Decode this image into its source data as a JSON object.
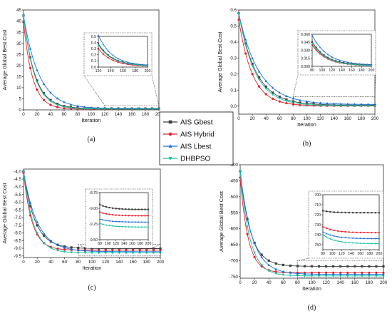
{
  "colors": {
    "AIS Gbest": "#404040",
    "AIS Hybrid": "#e8212b",
    "AIS Lbest": "#1c6fd8",
    "DHBPSO": "#16c2a3"
  },
  "legend": {
    "entries": [
      {
        "label": "AIS Gbest",
        "color": "#404040",
        "marker": "square"
      },
      {
        "label": "AIS Hybrid",
        "color": "#e8212b",
        "marker": "circle"
      },
      {
        "label": "AIS Lbest",
        "color": "#1c6fd8",
        "marker": "triangle"
      },
      {
        "label": "DHBPSO",
        "color": "#16c2a3",
        "marker": "down-triangle"
      }
    ]
  },
  "chart_data": [
    {
      "type": "line",
      "panel_label": "(a)",
      "xlabel": "Iteration",
      "ylabel": "Average Global Best Cost",
      "xlim": [
        0,
        200
      ],
      "ylim": [
        0,
        45
      ],
      "xticks": [
        0,
        20,
        40,
        60,
        80,
        100,
        120,
        140,
        160,
        180,
        200
      ],
      "yticks": [
        0,
        5,
        10,
        15,
        20,
        25,
        30,
        35,
        40,
        45
      ],
      "series": [
        {
          "name": "AIS Gbest",
          "start": 42.5,
          "final": 0.6,
          "rate": 0.06
        },
        {
          "name": "AIS Hybrid",
          "start": 39.5,
          "final": 0.3,
          "rate": 0.075
        },
        {
          "name": "AIS Lbest",
          "start": 42.5,
          "final": 0.5,
          "rate": 0.044
        },
        {
          "name": "DHBPSO",
          "start": 42.5,
          "final": 0.35,
          "rate": 0.062
        }
      ],
      "inset": {
        "xlim": [
          120,
          200
        ],
        "ylim": [
          0,
          0.5
        ],
        "xticks": [
          120,
          140,
          160,
          180,
          200
        ],
        "yticks": [
          0.0,
          0.1,
          0.2,
          0.3,
          0.4,
          0.5
        ],
        "ytick_labels": [
          "0.0",
          "0.1",
          "0.2",
          "0.3",
          "0.4",
          "0.5"
        ],
        "series": [
          {
            "name": "AIS Gbest",
            "start": 0.38,
            "final": 0.02,
            "rate": 0.045
          },
          {
            "name": "AIS Hybrid",
            "start": 0.3,
            "final": 0.01,
            "rate": 0.045
          },
          {
            "name": "AIS Lbest",
            "start": 0.52,
            "final": 0.02,
            "rate": 0.045
          },
          {
            "name": "DHBPSO",
            "start": 0.36,
            "final": 0.015,
            "rate": 0.045
          }
        ]
      }
    },
    {
      "type": "line",
      "panel_label": "(b)",
      "xlabel": "Iteration",
      "ylabel": "Average Global Best Cost",
      "xlim": [
        0,
        200
      ],
      "ylim": [
        -0.05,
        0.6
      ],
      "xticks": [
        0,
        20,
        40,
        60,
        80,
        100,
        120,
        140,
        160,
        180,
        200
      ],
      "yticks": [
        0.0,
        0.1,
        0.2,
        0.3,
        0.4,
        0.5,
        0.6
      ],
      "ytick_labels": [
        "0.0",
        "0.1",
        "0.2",
        "0.3",
        "0.4",
        "0.5",
        "0.6"
      ],
      "series": [
        {
          "name": "AIS Gbest",
          "start": 0.58,
          "final": 0.006,
          "rate": 0.04
        },
        {
          "name": "AIS Hybrid",
          "start": 0.54,
          "final": 0.002,
          "rate": 0.05
        },
        {
          "name": "AIS Lbest",
          "start": 0.58,
          "final": 0.01,
          "rate": 0.034
        },
        {
          "name": "DHBPSO",
          "start": 0.58,
          "final": 0.002,
          "rate": 0.042
        }
      ],
      "inset": {
        "xlim": [
          80,
          200
        ],
        "ylim": [
          0,
          0.06
        ],
        "xticks": [
          80,
          100,
          120,
          140,
          160,
          180,
          200
        ],
        "yticks": [
          0.0,
          0.015,
          0.03,
          0.045,
          0.06
        ],
        "ytick_labels": [
          "0.000",
          "0.015",
          "0.030",
          "0.045",
          "0.060"
        ],
        "series": [
          {
            "name": "AIS Gbest",
            "start": 0.046,
            "final": 0.002,
            "rate": 0.035
          },
          {
            "name": "AIS Hybrid",
            "start": 0.04,
            "final": 0.001,
            "rate": 0.035
          },
          {
            "name": "AIS Lbest",
            "start": 0.058,
            "final": 0.002,
            "rate": 0.032
          },
          {
            "name": "DHBPSO",
            "start": 0.043,
            "final": 0.001,
            "rate": 0.035
          }
        ]
      }
    },
    {
      "type": "line",
      "panel_label": "(c)",
      "xlabel": "Iteration",
      "ylabel": "Average Global Best Cost",
      "xlim": [
        0,
        200
      ],
      "ylim": [
        -9.6,
        -3.85
      ],
      "xticks": [
        0,
        20,
        40,
        60,
        80,
        100,
        120,
        140,
        160,
        180,
        200
      ],
      "yticks": [
        -9.5,
        -9.0,
        -8.5,
        -8.0,
        -7.5,
        -7.0,
        -6.5,
        -6.0,
        -5.5,
        -5.0,
        -4.5,
        -4.0
      ],
      "ytick_labels": [
        "-9.5",
        "-9.0",
        "-8.5",
        "-8.0",
        "-7.5",
        "-7.0",
        "-6.5",
        "-6.0",
        "-5.5",
        "-5.0",
        "-4.5",
        "-4.0"
      ],
      "series": [
        {
          "name": "AIS Gbest",
          "start": -4.0,
          "final": -9.02,
          "rate": 0.06
        },
        {
          "name": "AIS Hybrid",
          "start": -4.1,
          "final": -9.12,
          "rate": 0.08
        },
        {
          "name": "AIS Lbest",
          "start": -4.0,
          "final": -9.22,
          "rate": 0.05
        },
        {
          "name": "DHBPSO",
          "start": -4.0,
          "final": -9.3,
          "rate": 0.07
        }
      ],
      "inset": {
        "xlim": [
          80,
          200
        ],
        "ylim": [
          -9.5,
          -8.75
        ],
        "xticks": [
          80,
          100,
          120,
          140,
          160,
          180,
          200
        ],
        "yticks": [
          -9.5,
          -9.25,
          -9.0,
          -8.75
        ],
        "ytick_labels": [
          "-9.50",
          "-9.25",
          "-9.00",
          "-8.75"
        ],
        "series": [
          {
            "name": "AIS Gbest",
            "start": -8.94,
            "final": -9.02,
            "rate": 0.04
          },
          {
            "name": "AIS Hybrid",
            "start": -9.06,
            "final": -9.12,
            "rate": 0.04
          },
          {
            "name": "AIS Lbest",
            "start": -9.17,
            "final": -9.22,
            "rate": 0.04
          },
          {
            "name": "DHBPSO",
            "start": -9.24,
            "final": -9.3,
            "rate": 0.04
          }
        ]
      }
    },
    {
      "type": "line",
      "panel_label": "(d)",
      "xlabel": "Iteration",
      "ylabel": "Average Global Best Cost",
      "xlim": [
        0,
        200
      ],
      "ylim": [
        -755,
        -400
      ],
      "xticks": [
        0,
        20,
        40,
        60,
        80,
        100,
        120,
        140,
        160,
        180,
        200
      ],
      "yticks": [
        -750,
        -700,
        -650,
        -600,
        -550,
        -500,
        -450,
        -400
      ],
      "series": [
        {
          "name": "AIS Gbest",
          "start": -420,
          "final": -718,
          "rate": 0.07
        },
        {
          "name": "AIS Hybrid",
          "start": -440,
          "final": -738,
          "rate": 0.09
        },
        {
          "name": "AIS Lbest",
          "start": -420,
          "final": -743,
          "rate": 0.06
        },
        {
          "name": "DHBPSO",
          "start": -420,
          "final": -748,
          "rate": 0.075
        }
      ],
      "inset": {
        "xlim": [
          80,
          200
        ],
        "ylim": [
          -755,
          -700
        ],
        "xticks": [
          80,
          100,
          120,
          140,
          160,
          180,
          200
        ],
        "yticks": [
          -750,
          -740,
          -730,
          -720,
          -710,
          -700
        ],
        "series": [
          {
            "name": "AIS Gbest",
            "start": -716,
            "final": -718,
            "rate": 0.05
          },
          {
            "name": "AIS Hybrid",
            "start": -732,
            "final": -738,
            "rate": 0.04
          },
          {
            "name": "AIS Lbest",
            "start": -737,
            "final": -744,
            "rate": 0.04
          },
          {
            "name": "DHBPSO",
            "start": -740,
            "final": -749,
            "rate": 0.04
          }
        ]
      }
    }
  ]
}
